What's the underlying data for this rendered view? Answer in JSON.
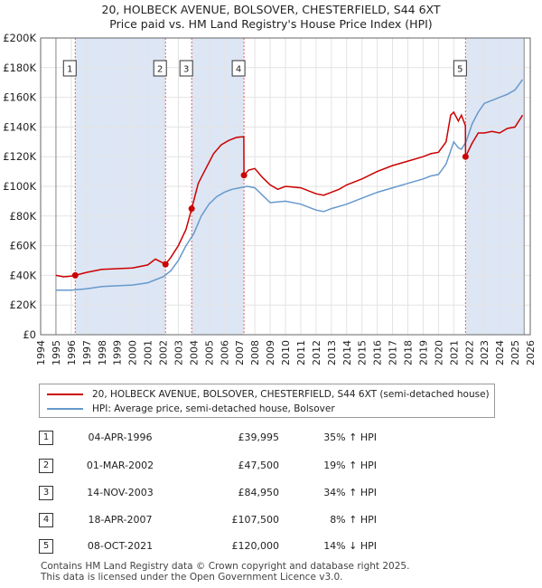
{
  "title_line1": "20, HOLBECK AVENUE, BOLSOVER, CHESTERFIELD, S44 6XT",
  "title_line2": "Price paid vs. HM Land Registry's House Price Index (HPI)",
  "colors": {
    "price_paid": "#cc0000",
    "hpi": "#6699cc",
    "shade": "#dde6f5",
    "marker_line": "#e06060"
  },
  "chart_data": {
    "type": "line",
    "title": "Price paid vs. HM Land Registry's House Price Index (HPI)",
    "xlim": [
      1994,
      2026
    ],
    "ylim": [
      0,
      200000
    ],
    "y_ticks": [
      0,
      20000,
      40000,
      60000,
      80000,
      100000,
      120000,
      140000,
      160000,
      180000,
      200000
    ],
    "y_tick_labels": [
      "£0",
      "£20K",
      "£40K",
      "£60K",
      "£80K",
      "£100K",
      "£120K",
      "£140K",
      "£160K",
      "£180K",
      "£200K"
    ],
    "x_ticks": [
      1994,
      1995,
      1996,
      1997,
      1998,
      1999,
      2000,
      2001,
      2002,
      2003,
      2004,
      2005,
      2006,
      2007,
      2008,
      2009,
      2010,
      2011,
      2012,
      2013,
      2014,
      2015,
      2016,
      2017,
      2018,
      2019,
      2020,
      2021,
      2022,
      2023,
      2024,
      2025,
      2026
    ],
    "x_tick_labels": [
      "1994",
      "1995",
      "1996",
      "1997",
      "1998",
      "1999",
      "2000",
      "2001",
      "2002",
      "2003",
      "2004",
      "2005",
      "2006",
      "2007",
      "2008",
      "2009",
      "2010",
      "2011",
      "2012",
      "2013",
      "2014",
      "2015",
      "2016",
      "2017",
      "2018",
      "2019",
      "2020",
      "2021",
      "2022",
      "2023",
      "2024",
      "2025",
      "2026"
    ],
    "data_start": 1995.0,
    "data_end": 2025.6,
    "shaded_periods": [
      [
        1996.26,
        2002.16
      ],
      [
        2003.87,
        2007.29
      ],
      [
        2021.77,
        2025.6
      ]
    ],
    "series": [
      {
        "name": "20, HOLBECK AVENUE, BOLSOVER, CHESTERFIELD, S44 6XT (semi-detached house)",
        "color": "#cc0000",
        "x": [
          1995.0,
          1995.5,
          1996.0,
          1996.26,
          1997.0,
          1998.0,
          1999.0,
          2000.0,
          2001.0,
          2001.5,
          2002.16,
          2002.5,
          2003.0,
          2003.5,
          2003.87,
          2004.3,
          2004.8,
          2005.3,
          2005.8,
          2006.3,
          2006.8,
          2007.28,
          2007.29,
          2007.6,
          2008.0,
          2008.5,
          2009.0,
          2009.5,
          2010.0,
          2011.0,
          2012.0,
          2012.5,
          2013.0,
          2013.5,
          2014.0,
          2015.0,
          2016.0,
          2017.0,
          2018.0,
          2019.0,
          2019.5,
          2020.0,
          2020.5,
          2020.8,
          2021.0,
          2021.3,
          2021.5,
          2021.76,
          2021.77,
          2022.2,
          2022.6,
          2023.0,
          2023.5,
          2024.0,
          2024.5,
          2025.0,
          2025.5
        ],
        "values": [
          40000,
          39000,
          39500,
          39995,
          42000,
          44000,
          44500,
          45000,
          47000,
          51000,
          47500,
          52000,
          60000,
          71000,
          84950,
          102000,
          112000,
          122000,
          128000,
          131000,
          133000,
          133500,
          107500,
          111000,
          112000,
          106000,
          101000,
          98000,
          100000,
          99000,
          95000,
          94000,
          96000,
          98000,
          101000,
          105000,
          110000,
          114000,
          117000,
          120000,
          122000,
          123000,
          130000,
          148000,
          150000,
          144000,
          148000,
          141000,
          120000,
          129000,
          136000,
          136000,
          137000,
          136000,
          139000,
          140000,
          148000
        ]
      },
      {
        "name": "HPI: Average price, semi-detached house, Bolsover",
        "color": "#6699cc",
        "x": [
          1995.0,
          1996.0,
          1997.0,
          1998.0,
          1999.0,
          2000.0,
          2001.0,
          2002.0,
          2002.5,
          2003.0,
          2003.5,
          2004.0,
          2004.5,
          2005.0,
          2005.5,
          2006.0,
          2006.5,
          2007.0,
          2007.5,
          2008.0,
          2008.5,
          2009.0,
          2010.0,
          2011.0,
          2012.0,
          2012.5,
          2013.0,
          2014.0,
          2015.0,
          2016.0,
          2017.0,
          2018.0,
          2019.0,
          2019.5,
          2020.0,
          2020.5,
          2021.0,
          2021.3,
          2021.5,
          2021.8,
          2022.2,
          2022.6,
          2023.0,
          2023.5,
          2024.0,
          2024.5,
          2025.0,
          2025.5
        ],
        "values": [
          30000,
          30000,
          31000,
          32500,
          33000,
          33500,
          35000,
          39000,
          43000,
          50000,
          60000,
          68000,
          80000,
          88000,
          93000,
          96000,
          98000,
          99000,
          100000,
          99000,
          94000,
          89000,
          90000,
          88000,
          84000,
          83000,
          85000,
          88000,
          92000,
          96000,
          99000,
          102000,
          105000,
          107000,
          108000,
          115000,
          130000,
          126000,
          125000,
          130000,
          142000,
          150000,
          156000,
          158000,
          160000,
          162000,
          165000,
          172000
        ]
      }
    ],
    "sales": [
      {
        "label": "1",
        "x": 1996.26,
        "price": 39995
      },
      {
        "label": "2",
        "x": 2002.16,
        "price": 47500
      },
      {
        "label": "3",
        "x": 2003.87,
        "price": 84950
      },
      {
        "label": "4",
        "x": 2007.29,
        "price": 107500
      },
      {
        "label": "5",
        "x": 2021.77,
        "price": 120000
      }
    ]
  },
  "legend": {
    "series1": "20, HOLBECK AVENUE, BOLSOVER, CHESTERFIELD, S44 6XT (semi-detached house)",
    "series2": "HPI: Average price, semi-detached house, Bolsover"
  },
  "transactions": [
    {
      "num": "1",
      "date": "04-APR-1996",
      "price": "£39,995",
      "hpi": "35% ↑ HPI"
    },
    {
      "num": "2",
      "date": "01-MAR-2002",
      "price": "£47,500",
      "hpi": "19% ↑ HPI"
    },
    {
      "num": "3",
      "date": "14-NOV-2003",
      "price": "£84,950",
      "hpi": "34% ↑ HPI"
    },
    {
      "num": "4",
      "date": "18-APR-2007",
      "price": "£107,500",
      "hpi": "8% ↑ HPI"
    },
    {
      "num": "5",
      "date": "08-OCT-2021",
      "price": "£120,000",
      "hpi": "14% ↓ HPI"
    }
  ],
  "footer_line1": "Contains HM Land Registry data © Crown copyright and database right 2025.",
  "footer_line2": "This data is licensed under the Open Government Licence v3.0."
}
